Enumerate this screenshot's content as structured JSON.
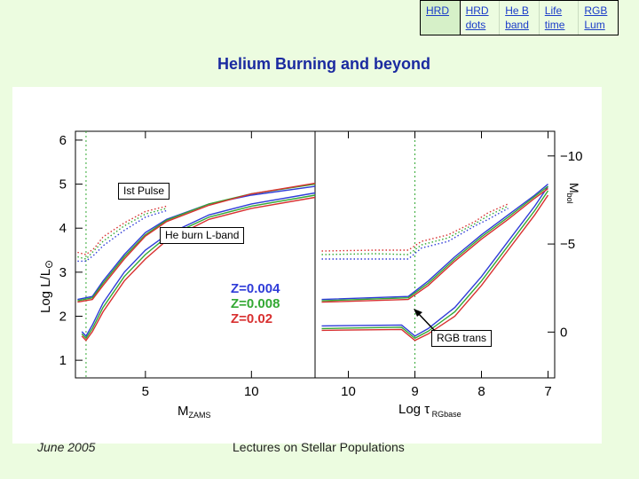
{
  "nav": {
    "items": [
      {
        "label": "HRD"
      },
      {
        "label": "HRD dots"
      },
      {
        "label": "He B band"
      },
      {
        "label": "Life time"
      },
      {
        "label": "RGB Lum"
      }
    ]
  },
  "page_title": "Helium Burning and beyond",
  "footer": {
    "date": "June 2005",
    "course": "Lectures on Stellar Populations"
  },
  "chart_data": [
    {
      "type": "line",
      "title": "",
      "xlabel": "M_ZAMS",
      "ylabel": "Log L/L_sun",
      "xlim": [
        1.7,
        13
      ],
      "ylim": [
        0.6,
        6.2
      ],
      "xticks": [
        5,
        10
      ],
      "yticks": [
        1,
        2,
        3,
        4,
        5,
        6
      ],
      "vline_x": 2.2,
      "series": [
        {
          "name": "Z=0.004",
          "color": "#2f3cd8",
          "style": "solid",
          "x": [
            2.0,
            2.2,
            2.5,
            3.0,
            4.0,
            5.0,
            6.0,
            8.0,
            10.0,
            13.0
          ],
          "values": [
            1.65,
            1.55,
            1.8,
            2.3,
            3.0,
            3.5,
            3.85,
            4.3,
            4.55,
            4.8
          ]
        },
        {
          "name": "Z=0.008",
          "color": "#33a833",
          "style": "solid",
          "x": [
            2.0,
            2.2,
            2.5,
            3.0,
            4.0,
            5.0,
            6.0,
            8.0,
            10.0,
            13.0
          ],
          "values": [
            1.6,
            1.5,
            1.72,
            2.2,
            2.9,
            3.4,
            3.8,
            4.25,
            4.5,
            4.75
          ]
        },
        {
          "name": "Z=0.02",
          "color": "#d83030",
          "style": "solid",
          "x": [
            2.0,
            2.2,
            2.5,
            3.0,
            4.0,
            5.0,
            6.0,
            8.0,
            10.0,
            13.0
          ],
          "values": [
            1.55,
            1.45,
            1.65,
            2.1,
            2.8,
            3.3,
            3.72,
            4.2,
            4.45,
            4.7
          ]
        },
        {
          "name": "",
          "color": "#2f3cd8",
          "style": "solid",
          "x": [
            1.8,
            2.5,
            3.0,
            4.0,
            5.0,
            6.0,
            8.0,
            10.0,
            13.0
          ],
          "values": [
            2.38,
            2.45,
            2.8,
            3.4,
            3.9,
            4.2,
            4.55,
            4.75,
            4.95
          ]
        },
        {
          "name": "",
          "color": "#33a833",
          "style": "solid",
          "x": [
            1.8,
            2.5,
            3.0,
            4.0,
            5.0,
            6.0,
            8.0,
            10.0,
            13.0
          ],
          "values": [
            2.35,
            2.42,
            2.75,
            3.35,
            3.85,
            4.18,
            4.55,
            4.78,
            5.0
          ]
        },
        {
          "name": "",
          "color": "#d83030",
          "style": "solid",
          "x": [
            1.8,
            2.5,
            3.0,
            4.0,
            5.0,
            6.0,
            8.0,
            10.0,
            13.0
          ],
          "values": [
            2.32,
            2.38,
            2.7,
            3.3,
            3.82,
            4.15,
            4.52,
            4.78,
            5.02
          ]
        },
        {
          "name": "",
          "color": "#2f3cd8",
          "style": "dotted",
          "x": [
            1.8,
            2.2,
            2.6,
            3.0,
            4.0,
            5.0,
            6.0
          ],
          "values": [
            3.25,
            3.25,
            3.4,
            3.6,
            3.95,
            4.25,
            4.4
          ]
        },
        {
          "name": "",
          "color": "#33a833",
          "style": "dotted",
          "x": [
            1.8,
            2.2,
            2.6,
            3.0,
            4.0,
            5.0,
            6.0
          ],
          "values": [
            3.35,
            3.3,
            3.5,
            3.7,
            4.05,
            4.32,
            4.45
          ]
        },
        {
          "name": "",
          "color": "#d83030",
          "style": "dotted",
          "x": [
            1.8,
            2.2,
            2.6,
            3.0,
            4.0,
            5.0,
            6.0
          ],
          "values": [
            3.45,
            3.4,
            3.55,
            3.8,
            4.12,
            4.38,
            4.5
          ]
        }
      ],
      "legend": [
        {
          "label": "Z=0.004",
          "color": "#2f3cd8"
        },
        {
          "label": "Z=0.008",
          "color": "#33a833"
        },
        {
          "label": "Z=0.02",
          "color": "#d83030"
        }
      ]
    },
    {
      "type": "line",
      "title": "",
      "xlabel": "Log τ_RGbase",
      "ylabel": "M_bol",
      "xlim": [
        10.5,
        6.9
      ],
      "ylim_right": [
        2.6,
        -11.4
      ],
      "xticks": [
        10,
        9,
        8,
        7
      ],
      "yticks_right": [
        -10,
        -5,
        0
      ],
      "vline_x": 9.0,
      "series": [
        {
          "name": "",
          "color": "#2f3cd8",
          "style": "solid",
          "x": [
            10.4,
            9.2,
            9.0,
            8.8,
            8.4,
            8.0,
            7.6,
            7.2,
            7.0
          ],
          "values": [
            1.78,
            1.8,
            1.55,
            1.72,
            2.2,
            2.9,
            3.7,
            4.5,
            4.95
          ]
        },
        {
          "name": "",
          "color": "#33a833",
          "style": "solid",
          "x": [
            10.4,
            9.2,
            9.0,
            8.8,
            8.4,
            8.0,
            7.6,
            7.2,
            7.0
          ],
          "values": [
            1.72,
            1.75,
            1.5,
            1.66,
            2.1,
            2.8,
            3.6,
            4.4,
            4.85
          ]
        },
        {
          "name": "",
          "color": "#d83030",
          "style": "solid",
          "x": [
            10.4,
            9.2,
            9.0,
            8.8,
            8.4,
            8.0,
            7.6,
            7.2,
            7.0
          ],
          "values": [
            1.68,
            1.7,
            1.45,
            1.6,
            2.0,
            2.7,
            3.5,
            4.3,
            4.75
          ]
        },
        {
          "name": "",
          "color": "#2f3cd8",
          "style": "solid",
          "x": [
            10.4,
            9.1,
            8.8,
            8.4,
            8.0,
            7.6,
            7.2,
            7.0
          ],
          "values": [
            2.38,
            2.45,
            2.8,
            3.35,
            3.85,
            4.3,
            4.75,
            5.0
          ]
        },
        {
          "name": "",
          "color": "#33a833",
          "style": "solid",
          "x": [
            10.4,
            9.1,
            8.8,
            8.4,
            8.0,
            7.6,
            7.2,
            7.0
          ],
          "values": [
            2.35,
            2.42,
            2.75,
            3.3,
            3.8,
            4.25,
            4.72,
            4.95
          ]
        },
        {
          "name": "",
          "color": "#d83030",
          "style": "solid",
          "x": [
            10.4,
            9.1,
            8.8,
            8.4,
            8.0,
            7.6,
            7.2,
            7.0
          ],
          "values": [
            2.32,
            2.38,
            2.7,
            3.25,
            3.75,
            4.2,
            4.68,
            4.9
          ]
        },
        {
          "name": "",
          "color": "#2f3cd8",
          "style": "dotted",
          "x": [
            10.4,
            9.6,
            9.1,
            8.9,
            8.5,
            8.1,
            7.9,
            7.6
          ],
          "values": [
            3.3,
            3.3,
            3.3,
            3.55,
            3.7,
            4.05,
            4.2,
            4.45
          ]
        },
        {
          "name": "",
          "color": "#33a833",
          "style": "dotted",
          "x": [
            10.4,
            9.6,
            9.1,
            8.9,
            8.5,
            8.1,
            7.9,
            7.6
          ],
          "values": [
            3.4,
            3.42,
            3.4,
            3.62,
            3.78,
            4.1,
            4.28,
            4.5
          ]
        },
        {
          "name": "",
          "color": "#d83030",
          "style": "dotted",
          "x": [
            10.4,
            9.6,
            9.1,
            8.9,
            8.5,
            8.1,
            7.9,
            7.6
          ],
          "values": [
            3.48,
            3.5,
            3.5,
            3.7,
            3.85,
            4.15,
            4.35,
            4.55
          ]
        }
      ]
    }
  ],
  "annotations": {
    "first_pulse": "Ist Pulse",
    "heburn": "He burn L-band",
    "rgb_trans": "RGB trans"
  }
}
